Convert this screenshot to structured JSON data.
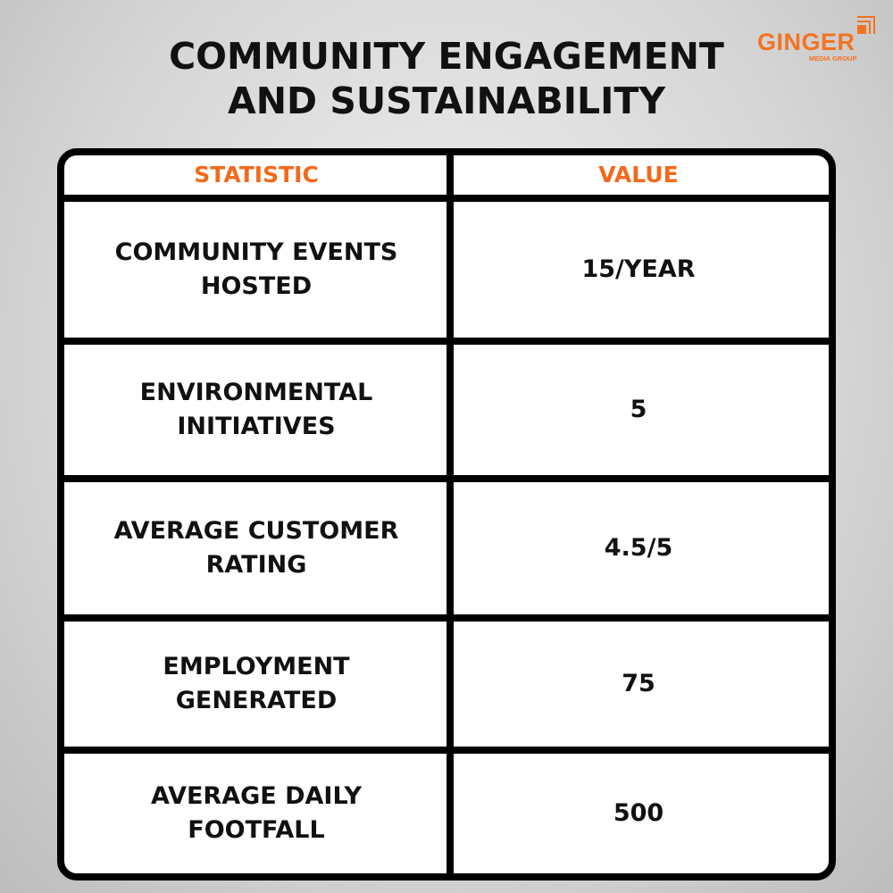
{
  "title": {
    "line1": "COMMUNITY ENGAGEMENT",
    "line2": "AND SUSTAINABILITY"
  },
  "logo": {
    "word": "GINGER",
    "sub": "MEDIA GROUP",
    "color": "#f47321"
  },
  "table": {
    "headers": [
      "STATISTIC",
      "VALUE"
    ],
    "header_color": "#f26a1b",
    "rows": [
      {
        "stat1": "COMMUNITY EVENTS",
        "stat2": "HOSTED",
        "value": "15/YEAR"
      },
      {
        "stat1": "ENVIRONMENTAL",
        "stat2": "INITIATIVES",
        "value": "5"
      },
      {
        "stat1": "AVERAGE CUSTOMER",
        "stat2": "RATING",
        "value": "4.5/5"
      },
      {
        "stat1": "EMPLOYMENT",
        "stat2": "GENERATED",
        "value": "75"
      },
      {
        "stat1": "AVERAGE DAILY",
        "stat2": "FOOTFALL",
        "value": "500"
      }
    ]
  }
}
